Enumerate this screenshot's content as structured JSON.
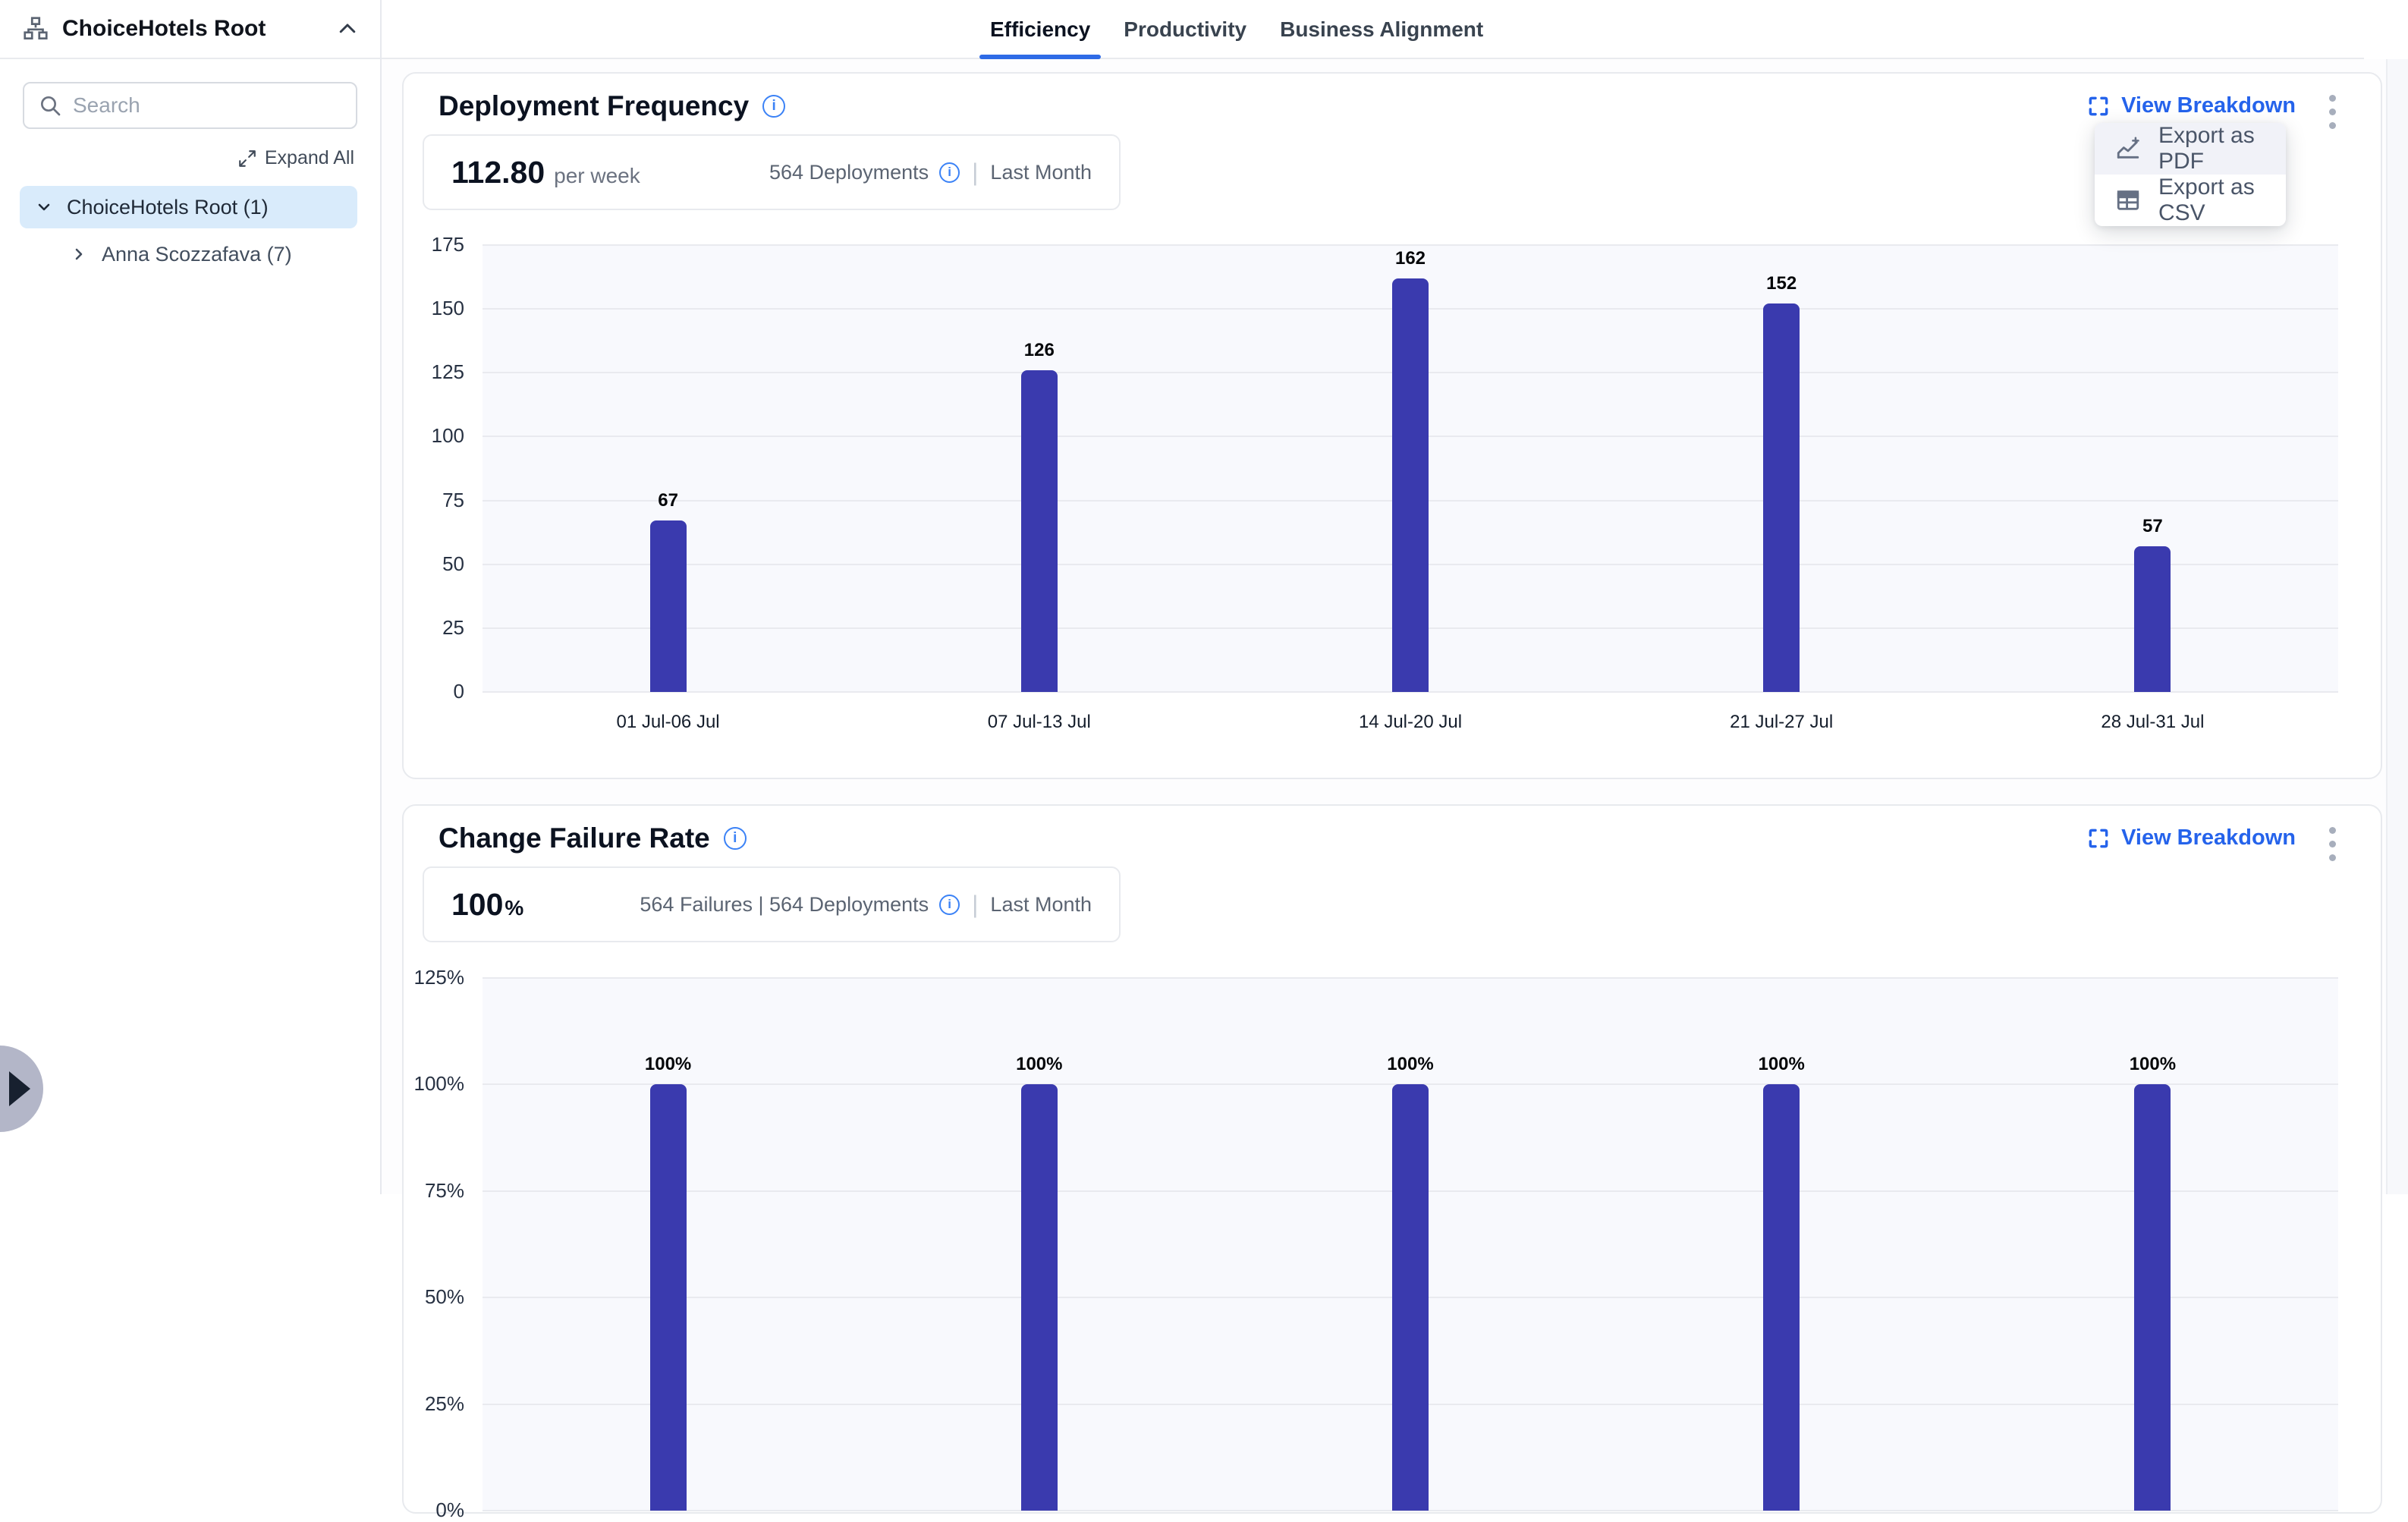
{
  "sidebar": {
    "title": "ChoiceHotels Root",
    "search": {
      "placeholder": "Search"
    },
    "expand_all_label": "Expand All",
    "tree": [
      {
        "label": "ChoiceHotels Root (1)",
        "selected": true,
        "expanded": true
      },
      {
        "label": "Anna Scozzafava (7)",
        "selected": false,
        "expanded": false
      }
    ]
  },
  "tabs": [
    {
      "label": "Efficiency",
      "active": true
    },
    {
      "label": "Productivity",
      "active": false
    },
    {
      "label": "Business Alignment",
      "active": false
    }
  ],
  "menu": {
    "items": [
      {
        "label": "Export as PDF",
        "icon": "export-chart-icon",
        "hovered": true
      },
      {
        "label": "Export as CSV",
        "icon": "export-table-icon",
        "hovered": false
      }
    ]
  },
  "cards": [
    {
      "title": "Deployment Frequency",
      "view_breakdown_label": "View Breakdown",
      "stat": {
        "value": "112.80",
        "unit": "per week",
        "meta": "564 Deployments",
        "period": "Last Month"
      }
    },
    {
      "title": "Change Failure Rate",
      "view_breakdown_label": "View Breakdown",
      "stat": {
        "value": "100",
        "unit": "%",
        "meta": "564 Failures | 564 Deployments",
        "period": "Last Month"
      }
    }
  ],
  "colors": {
    "bar": "#3a3aae",
    "accent_blue": "#2563eb",
    "selected_row": "#d9ebfb",
    "plot_bg": "#f8f9fd"
  },
  "icons": {
    "sidebar": [
      "org-hierarchy-icon",
      "chevron-up-icon",
      "search-icon",
      "expand-all-icon",
      "chevron-down-icon",
      "chevron-right-icon"
    ],
    "cards": [
      "info-icon",
      "view-breakdown-expand-icon",
      "kebab-menu-icon"
    ],
    "menu": [
      "export-chart-icon",
      "export-table-icon"
    ],
    "edge": [
      "panel-toggle-arrow-icon"
    ]
  },
  "chart_data": [
    {
      "type": "bar",
      "title": "Deployment Frequency",
      "categories": [
        "01 Jul-06 Jul",
        "07 Jul-13 Jul",
        "14 Jul-20 Jul",
        "21 Jul-27 Jul",
        "28 Jul-31 Jul"
      ],
      "values": [
        67,
        126,
        162,
        152,
        57
      ],
      "value_labels": [
        "67",
        "126",
        "162",
        "152",
        "57"
      ],
      "ymin": 0,
      "ymax": 175,
      "yticks": [
        0,
        25,
        50,
        75,
        100,
        125,
        150,
        175
      ],
      "ytick_suffix": "",
      "xlabel": "",
      "ylabel": "",
      "grid": true,
      "legend": false
    },
    {
      "type": "bar",
      "title": "Change Failure Rate",
      "categories": [
        "",
        "",
        "",
        "",
        ""
      ],
      "values": [
        100,
        100,
        100,
        100,
        100
      ],
      "value_labels": [
        "100%",
        "100%",
        "100%",
        "100%",
        "100%"
      ],
      "ymin": 0,
      "ymax": 125,
      "yticks": [
        125,
        100,
        75,
        50,
        25,
        0
      ],
      "ytick_suffix": "%",
      "xlabel": "",
      "ylabel": "",
      "grid": true,
      "legend": false
    }
  ]
}
